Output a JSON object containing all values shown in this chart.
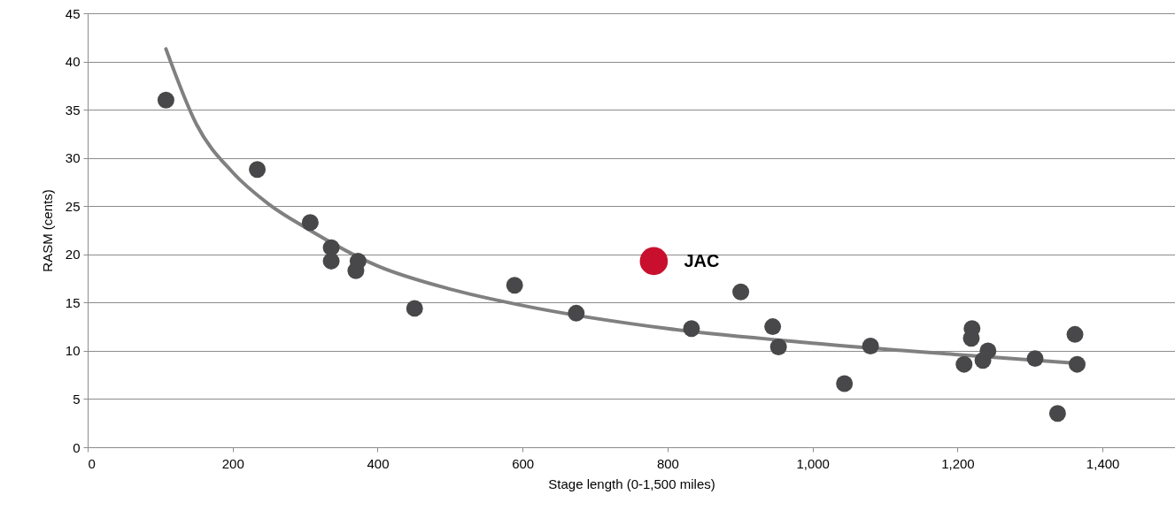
{
  "chart_data": {
    "type": "scatter",
    "xlabel": "Stage length (0-1,500 miles)",
    "ylabel": "RASM (cents)",
    "xlim": [
      0,
      1500
    ],
    "ylim": [
      0,
      45
    ],
    "xticks": [
      0,
      200,
      400,
      600,
      800,
      {
        "value": 1000,
        "label": "1,000"
      },
      {
        "value": 1200,
        "label": "1,200"
      },
      {
        "value": 1400,
        "label": "1,400"
      }
    ],
    "yticks": [
      0,
      5,
      10,
      15,
      20,
      25,
      30,
      35,
      40,
      45
    ],
    "grid": "y",
    "series": [
      {
        "color": "#48484a",
        "marker": "circle",
        "x": [
          108,
          234,
          307,
          336,
          336,
          370,
          373,
          451,
          589,
          674,
          833,
          901,
          945,
          953,
          1044,
          1080,
          1209,
          1219,
          1220,
          1235,
          1242,
          1307,
          1338,
          1362,
          1365
        ],
        "values": [
          36.0,
          28.8,
          23.3,
          20.7,
          19.3,
          18.3,
          19.3,
          14.4,
          16.8,
          13.9,
          12.3,
          16.1,
          12.5,
          10.4,
          6.6,
          10.5,
          8.6,
          11.3,
          12.3,
          9.0,
          10.0,
          9.2,
          3.5,
          11.7,
          8.6
        ]
      },
      {
        "name": "JAC",
        "color": "#c8102e",
        "marker": "circle",
        "x": [
          781
        ],
        "values": [
          19.3
        ]
      },
      {
        "type": "line",
        "color": "#808080",
        "marker": "none",
        "line_style": "solid",
        "x": [
          108,
          150,
          200,
          250,
          300,
          400,
          500,
          600,
          800,
          1000,
          1200,
          1365
        ],
        "values": [
          41.3,
          33.5,
          28.5,
          25.2,
          22.8,
          18.8,
          16.4,
          14.7,
          12.3,
          10.8,
          9.6,
          8.7
        ]
      }
    ]
  }
}
